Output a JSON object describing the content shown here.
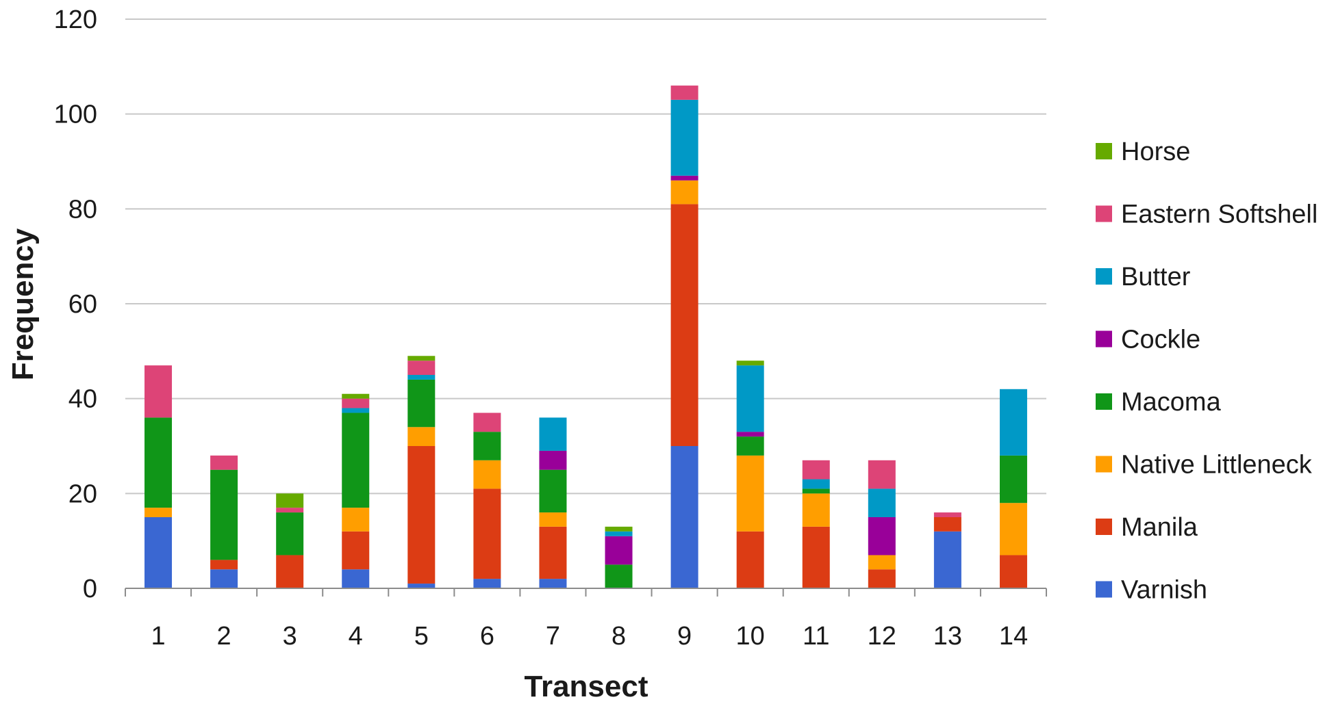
{
  "chart_data": {
    "type": "bar",
    "stacked": true,
    "title": "",
    "xlabel": "Transect",
    "ylabel": "Frequency",
    "ylim": [
      0,
      120
    ],
    "yticks": [
      0,
      20,
      40,
      60,
      80,
      100,
      120
    ],
    "grid": true,
    "legend_position": "right",
    "categories": [
      "1",
      "2",
      "3",
      "4",
      "5",
      "6",
      "7",
      "8",
      "9",
      "10",
      "11",
      "12",
      "13",
      "14"
    ],
    "series": [
      {
        "name": "Varnish",
        "color": "#3A67D2",
        "values": [
          15,
          4,
          0,
          4,
          1,
          2,
          2,
          0,
          30,
          0,
          0,
          0,
          12,
          0
        ]
      },
      {
        "name": "Manila",
        "color": "#DC3C14",
        "values": [
          0,
          2,
          7,
          8,
          29,
          19,
          11,
          0,
          51,
          12,
          13,
          4,
          3,
          7
        ]
      },
      {
        "name": "Native Littleneck",
        "color": "#FF9E00",
        "values": [
          2,
          0,
          0,
          5,
          4,
          6,
          3,
          0,
          5,
          16,
          7,
          3,
          0,
          11
        ]
      },
      {
        "name": "Macoma",
        "color": "#109618",
        "values": [
          19,
          19,
          9,
          20,
          10,
          6,
          9,
          5,
          0,
          4,
          1,
          0,
          0,
          10
        ]
      },
      {
        "name": "Cockle",
        "color": "#990099",
        "values": [
          0,
          0,
          0,
          0,
          0,
          0,
          4,
          6,
          1,
          1,
          0,
          8,
          0,
          0
        ]
      },
      {
        "name": "Butter",
        "color": "#0099C6",
        "values": [
          0,
          0,
          0,
          1,
          1,
          0,
          7,
          1,
          16,
          14,
          2,
          6,
          0,
          14
        ]
      },
      {
        "name": "Eastern Softshell",
        "color": "#DD4477",
        "values": [
          11,
          3,
          1,
          2,
          3,
          4,
          0,
          0,
          3,
          0,
          4,
          6,
          1,
          0
        ]
      },
      {
        "name": "Horse",
        "color": "#66AA00",
        "values": [
          0,
          0,
          3,
          1,
          1,
          0,
          0,
          1,
          0,
          1,
          0,
          0,
          0,
          0
        ]
      }
    ]
  }
}
